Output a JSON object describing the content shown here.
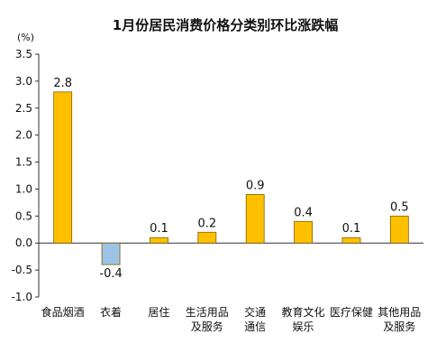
{
  "chart_data": {
    "type": "bar",
    "title": "1月份居民消费价格分类别环比涨跌幅",
    "unit_label": "(%)",
    "categories": [
      [
        "食品烟酒"
      ],
      [
        "衣着"
      ],
      [
        "居住"
      ],
      [
        "生活用品",
        "及服务"
      ],
      [
        "交通",
        "通信"
      ],
      [
        "教育文化",
        "娱乐"
      ],
      [
        "医疗保健"
      ],
      [
        "其他用品",
        "及服务"
      ]
    ],
    "values": [
      2.8,
      -0.4,
      0.1,
      0.2,
      0.9,
      0.4,
      0.1,
      0.5
    ],
    "value_labels": [
      "2.8",
      "-0.4",
      "0.1",
      "0.2",
      "0.9",
      "0.4",
      "0.1",
      "0.5"
    ],
    "colors": [
      "#FFC000",
      "#9DC3E6",
      "#FFC000",
      "#FFC000",
      "#FFC000",
      "#FFC000",
      "#FFC000",
      "#FFC000"
    ],
    "bar_stroke": "#7F6000",
    "ylim": [
      -1.0,
      3.5
    ],
    "yticks": [
      3.5,
      3.0,
      2.5,
      2.0,
      1.5,
      1.0,
      0.5,
      0.0,
      -0.5,
      -1.0
    ],
    "ytick_labels": [
      "3.5",
      "3.0",
      "2.5",
      "2.0",
      "1.5",
      "1.0",
      "0.5",
      "0.0",
      "-0.5",
      "-1.0"
    ],
    "grid": false,
    "legend": "none"
  }
}
